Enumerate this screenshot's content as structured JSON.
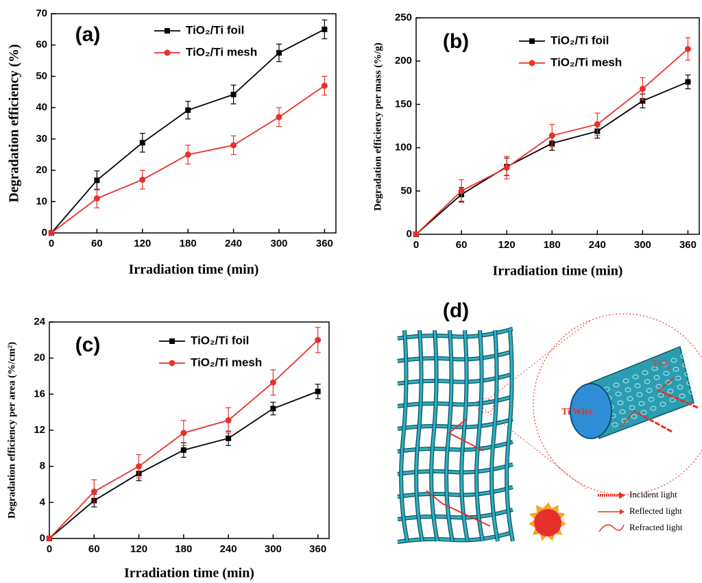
{
  "chart_data": [
    {
      "type": "line",
      "label": "(a)",
      "xlabel": "Irradiation time (min)",
      "ylabel": "Degradation efficiency (%)",
      "x": [
        0,
        60,
        120,
        180,
        240,
        300,
        360
      ],
      "xlim": [
        0,
        375
      ],
      "xticks": [
        0,
        60,
        120,
        180,
        240,
        300,
        360
      ],
      "ylim": [
        0,
        70
      ],
      "yticks": [
        0,
        10,
        20,
        30,
        40,
        50,
        60,
        70
      ],
      "series": [
        {
          "name": "TiO₂/Ti foil",
          "color": "#000000",
          "marker": "square",
          "values": [
            0,
            16.8,
            28.8,
            39.2,
            44.2,
            57.5,
            65
          ],
          "errors": [
            0,
            3,
            3,
            2.8,
            3,
            2.8,
            3
          ]
        },
        {
          "name": "TiO₂/Ti mesh",
          "color": "#e8302a",
          "marker": "circle",
          "values": [
            0,
            11,
            17,
            25,
            28,
            37,
            47
          ],
          "errors": [
            0,
            3,
            3,
            3,
            3,
            3,
            3
          ]
        }
      ]
    },
    {
      "type": "line",
      "label": "(b)",
      "xlabel": "Irradiation time (min)",
      "ylabel": "Degradation efficiency per mass (%/g)",
      "x": [
        0,
        60,
        120,
        180,
        240,
        300,
        360
      ],
      "xlim": [
        0,
        375
      ],
      "xticks": [
        0,
        60,
        120,
        180,
        240,
        300,
        360
      ],
      "ylim": [
        0,
        250
      ],
      "yticks": [
        0,
        50,
        100,
        150,
        200,
        250
      ],
      "series": [
        {
          "name": "TiO₂/Ti foil",
          "color": "#000000",
          "marker": "square",
          "values": [
            0,
            46,
            78,
            105,
            119,
            154,
            176
          ],
          "errors": [
            0,
            8,
            10,
            8,
            8,
            8,
            8
          ]
        },
        {
          "name": "TiO₂/Ti mesh",
          "color": "#e8302a",
          "marker": "circle",
          "values": [
            0,
            50,
            77,
            114,
            127,
            168,
            214
          ],
          "errors": [
            0,
            13,
            13,
            13,
            13,
            13,
            13
          ]
        }
      ]
    },
    {
      "type": "line",
      "label": "(c)",
      "xlabel": "Irradiation time (min)",
      "ylabel": "Degradation efficiency per area (%/cm²)",
      "x": [
        0,
        60,
        120,
        180,
        240,
        300,
        360
      ],
      "xlim": [
        0,
        375
      ],
      "xticks": [
        0,
        60,
        120,
        180,
        240,
        300,
        360
      ],
      "ylim": [
        0,
        24
      ],
      "yticks": [
        0,
        4,
        8,
        12,
        16,
        20,
        24
      ],
      "series": [
        {
          "name": "TiO₂/Ti foil",
          "color": "#000000",
          "marker": "square",
          "values": [
            0,
            4.2,
            7.2,
            9.8,
            11.1,
            14.4,
            16.3
          ],
          "errors": [
            0,
            0.7,
            0.8,
            0.8,
            0.8,
            0.7,
            0.8
          ]
        },
        {
          "name": "TiO₂/Ti mesh",
          "color": "#e8302a",
          "marker": "circle",
          "values": [
            0,
            5.2,
            8.0,
            11.7,
            13.1,
            17.3,
            22.0
          ],
          "errors": [
            0,
            1.3,
            1.3,
            1.4,
            1.4,
            1.4,
            1.4
          ]
        }
      ]
    }
  ],
  "diagram": {
    "label": "(d)",
    "coating": "TiO₂",
    "wire": "Ti Wire",
    "legend": [
      "Incident light",
      "Reflected light",
      "Refracted light"
    ]
  }
}
